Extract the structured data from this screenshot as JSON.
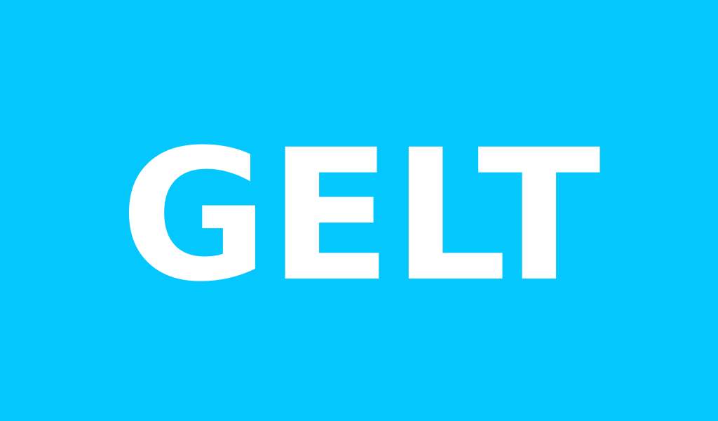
{
  "brand": {
    "name": "GELT",
    "background_color": "#04c8fd",
    "text_color": "#ffffff"
  }
}
